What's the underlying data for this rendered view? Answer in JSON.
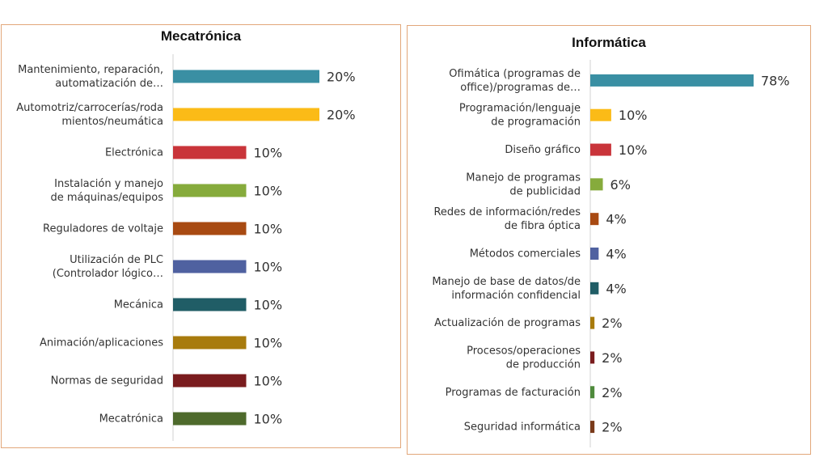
{
  "chart_data": [
    {
      "type": "bar",
      "orientation": "horizontal",
      "title": "Mecatrónica",
      "categories": [
        "Mantenimiento, reparación, automatización de…",
        "Automotriz/carrocerías/roda mientos/neumática",
        "Electrónica",
        "Instalación y manejo de máquinas/equipos",
        "Reguladores de voltaje",
        "Utilización de PLC (Controlador lógico…",
        "Mecánica",
        "Animación/aplicaciones",
        "Normas de seguridad",
        "Mecatrónica"
      ],
      "values": [
        20,
        20,
        10,
        10,
        10,
        10,
        10,
        10,
        10,
        10
      ],
      "value_labels": [
        "20%",
        "20%",
        "10%",
        "10%",
        "10%",
        "10%",
        "10%",
        "10%",
        "10%",
        "10%"
      ],
      "colors": [
        "#3a8fa3",
        "#fbbb17",
        "#c9343a",
        "#86ab3c",
        "#a84a12",
        "#4f61a0",
        "#205d66",
        "#a87b0d",
        "#7a1c1e",
        "#4e6a2c"
      ],
      "xlim": [
        0,
        20
      ],
      "grid": false
    },
    {
      "type": "bar",
      "orientation": "horizontal",
      "title": "Informática",
      "categories": [
        "Ofimática (programas de office)/programas de…",
        "Programación/lenguaje de programación",
        "Diseño gráfico",
        "Manejo de programas de publicidad",
        "Redes de información/redes de fibra óptica",
        "Métodos comerciales",
        "Manejo de base de datos/de información confidencial",
        "Actualización de programas",
        "Procesos/operaciones de producción",
        "Programas de facturación",
        "Seguridad informática"
      ],
      "values": [
        78,
        10,
        10,
        6,
        4,
        4,
        4,
        2,
        2,
        2,
        2
      ],
      "value_labels": [
        "78%",
        "10%",
        "10%",
        "6%",
        "4%",
        "4%",
        "4%",
        "2%",
        "2%",
        "2%",
        "2%"
      ],
      "colors": [
        "#3a8fa3",
        "#fbbb17",
        "#c9343a",
        "#86ab3c",
        "#a84a12",
        "#4f61a0",
        "#205d66",
        "#a87b0d",
        "#7a1c1e",
        "#4e8a3c",
        "#7a3a1a"
      ],
      "xlim": [
        0,
        78
      ],
      "grid": false
    }
  ]
}
